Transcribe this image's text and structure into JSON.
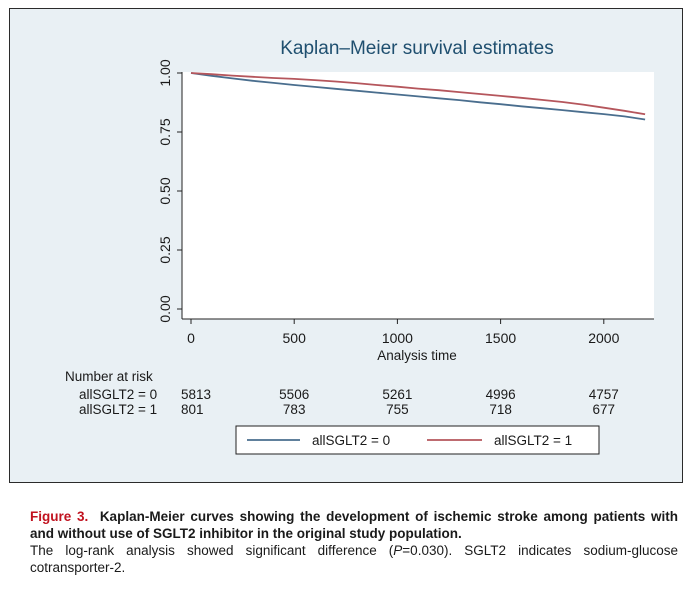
{
  "chart_data": {
    "type": "line",
    "title": "Kaplan–Meier survival estimates",
    "xlabel": "Analysis time",
    "ylabel": "",
    "xlim": [
      0,
      2200
    ],
    "ylim": [
      0,
      1
    ],
    "x_ticks": [
      "0",
      "500",
      "1000",
      "1500",
      "2000"
    ],
    "y_ticks": [
      "0.00",
      "0.25",
      "0.50",
      "0.75",
      "1.00"
    ],
    "grid": false,
    "legend_position": "bottom",
    "series": [
      {
        "name": "allSGLT2 = 0",
        "color": "#4a6e8e",
        "x": [
          0,
          100,
          200,
          300,
          400,
          500,
          600,
          700,
          800,
          900,
          1000,
          1100,
          1200,
          1300,
          1400,
          1500,
          1600,
          1700,
          1800,
          1900,
          2000,
          2100,
          2200
        ],
        "y": [
          1.0,
          0.988,
          0.977,
          0.967,
          0.958,
          0.949,
          0.941,
          0.933,
          0.925,
          0.917,
          0.909,
          0.901,
          0.893,
          0.885,
          0.876,
          0.868,
          0.859,
          0.851,
          0.843,
          0.834,
          0.826,
          0.816,
          0.803
        ]
      },
      {
        "name": "allSGLT2 = 1",
        "color": "#b5565c",
        "x": [
          0,
          100,
          200,
          300,
          400,
          500,
          600,
          700,
          800,
          900,
          1000,
          1100,
          1200,
          1300,
          1400,
          1500,
          1600,
          1700,
          1800,
          1900,
          2000,
          2100,
          2200
        ],
        "y": [
          1.0,
          0.995,
          0.989,
          0.984,
          0.979,
          0.975,
          0.97,
          0.964,
          0.957,
          0.949,
          0.942,
          0.934,
          0.927,
          0.919,
          0.911,
          0.903,
          0.895,
          0.886,
          0.877,
          0.866,
          0.853,
          0.84,
          0.825
        ]
      }
    ],
    "risk_table": {
      "title": "Number at risk",
      "rows": [
        {
          "label": "allSGLT2 = 0",
          "values": [
            "5813",
            "5506",
            "5261",
            "4996",
            "4757"
          ]
        },
        {
          "label": "allSGLT2 = 1",
          "values": [
            "801",
            "783",
            "755",
            "718",
            "677"
          ]
        }
      ]
    }
  },
  "caption": {
    "figure_label": "Figure 3.",
    "figure_title": "Kaplan-Meier curves showing the development of ischemic stroke among patients with and without use of SGLT2 inhibitor in the original study population.",
    "body_before": "The log-rank analysis showed significant difference (",
    "body_italic": "P",
    "body_after": "=0.030). SGLT2 indicates sodium-glucose cotransporter-2."
  }
}
